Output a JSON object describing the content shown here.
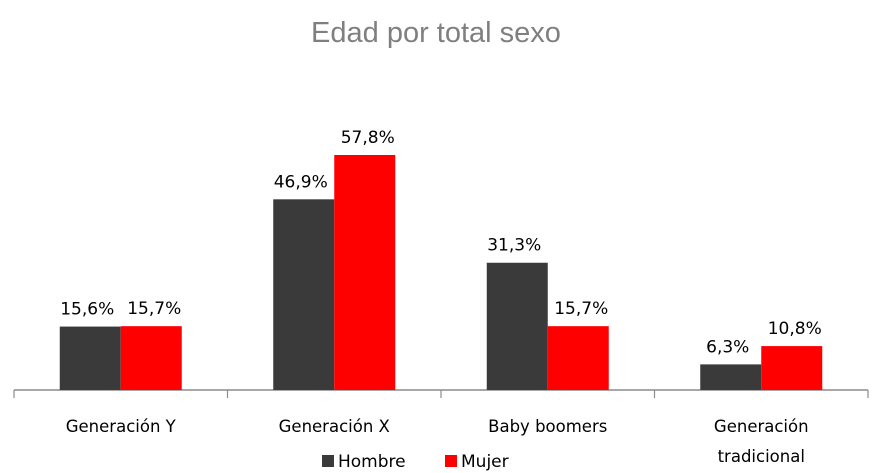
{
  "chart_data": {
    "type": "bar",
    "title": "Edad por total sexo",
    "categories": [
      [
        "Generación Y"
      ],
      [
        "Generación X"
      ],
      [
        "Baby boomers"
      ],
      [
        "Generación",
        "tradicional"
      ]
    ],
    "series": [
      {
        "name": "Hombre",
        "color": "#3a3a3a",
        "values": [
          15.6,
          46.9,
          31.3,
          6.3
        ],
        "labels": [
          "15,6%",
          "46,9%",
          "31,3%",
          "6,3%"
        ]
      },
      {
        "name": "Mujer",
        "color": "#ff0000",
        "values": [
          15.7,
          57.8,
          15.7,
          10.8
        ],
        "labels": [
          "15,7%",
          "57,8%",
          "15,7%",
          "10,8%"
        ]
      }
    ],
    "ylim": [
      0,
      60
    ],
    "grid": false,
    "legend": "bottom"
  }
}
